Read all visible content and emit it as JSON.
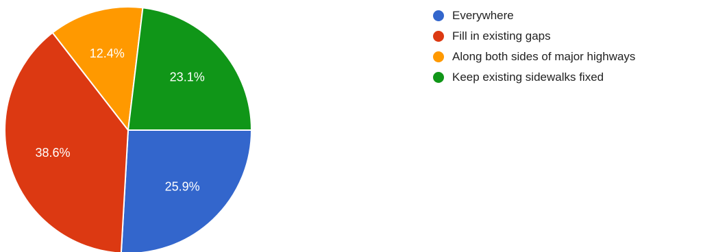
{
  "chart_data": {
    "type": "pie",
    "title": "",
    "slices": [
      {
        "label": "Everywhere",
        "value": 25.9,
        "value_label": "25.9%",
        "color": "#3366cc"
      },
      {
        "label": "Fill in existing gaps",
        "value": 38.6,
        "value_label": "38.6%",
        "color": "#dc3912"
      },
      {
        "label": "Along both sides of major highways",
        "value": 12.4,
        "value_label": "12.4%",
        "color": "#ff9900"
      },
      {
        "label": "Keep existing sidewalks fixed",
        "value": 23.1,
        "value_label": "23.1%",
        "color": "#109618"
      }
    ],
    "start_angle": "3 o'clock",
    "direction": "clockwise",
    "legend_position": "right"
  }
}
